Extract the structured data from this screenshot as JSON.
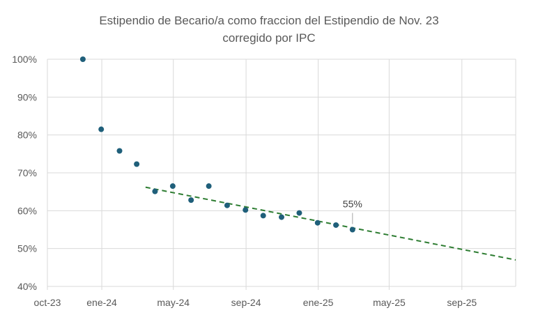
{
  "chart_data": {
    "type": "scatter",
    "title_lines": [
      "Estipendio de Becario/a como fraccion del  Estipendio de Nov. 23",
      "corregido por IPC"
    ],
    "x_ticks": [
      "oct-23",
      "ene-24",
      "may-24",
      "sep-24",
      "ene-25",
      "may-25",
      "sep-25"
    ],
    "x_tick_dates": [
      "2023-10-01",
      "2024-01-01",
      "2024-05-01",
      "2024-09-01",
      "2025-01-01",
      "2025-05-01",
      "2025-09-01"
    ],
    "x_range": [
      "2023-10-01",
      "2025-12-01"
    ],
    "y_ticks": [
      "100%",
      "90%",
      "80%",
      "70%",
      "60%",
      "50%",
      "40%"
    ],
    "y_tick_values": [
      1.0,
      0.9,
      0.8,
      0.7,
      0.6,
      0.5,
      0.4
    ],
    "ylim": [
      0.4,
      1.0
    ],
    "grid": true,
    "points": [
      {
        "x": "2023-11-30",
        "y": 1.0
      },
      {
        "x": "2023-12-31",
        "y": 0.815
      },
      {
        "x": "2024-01-31",
        "y": 0.758
      },
      {
        "x": "2024-02-29",
        "y": 0.723
      },
      {
        "x": "2024-03-31",
        "y": 0.651
      },
      {
        "x": "2024-04-30",
        "y": 0.665
      },
      {
        "x": "2024-05-31",
        "y": 0.628
      },
      {
        "x": "2024-06-30",
        "y": 0.665
      },
      {
        "x": "2024-07-31",
        "y": 0.614
      },
      {
        "x": "2024-08-31",
        "y": 0.602
      },
      {
        "x": "2024-09-30",
        "y": 0.587
      },
      {
        "x": "2024-10-31",
        "y": 0.583
      },
      {
        "x": "2024-11-30",
        "y": 0.594
      },
      {
        "x": "2024-12-31",
        "y": 0.568
      },
      {
        "x": "2025-01-31",
        "y": 0.562
      },
      {
        "x": "2025-02-28",
        "y": 0.55
      }
    ],
    "trendline": {
      "start": {
        "x": "2024-03-15",
        "y": 0.662
      },
      "end": {
        "x": "2025-12-01",
        "y": 0.47
      },
      "style": "dashed"
    },
    "annotation": {
      "text": "55%",
      "x": "2025-02-28",
      "y": 0.55
    },
    "colors": {
      "marker": "#1f5f7a",
      "trendline": "#2e7d32",
      "grid": "#d9d9d9",
      "text": "#595959"
    }
  }
}
